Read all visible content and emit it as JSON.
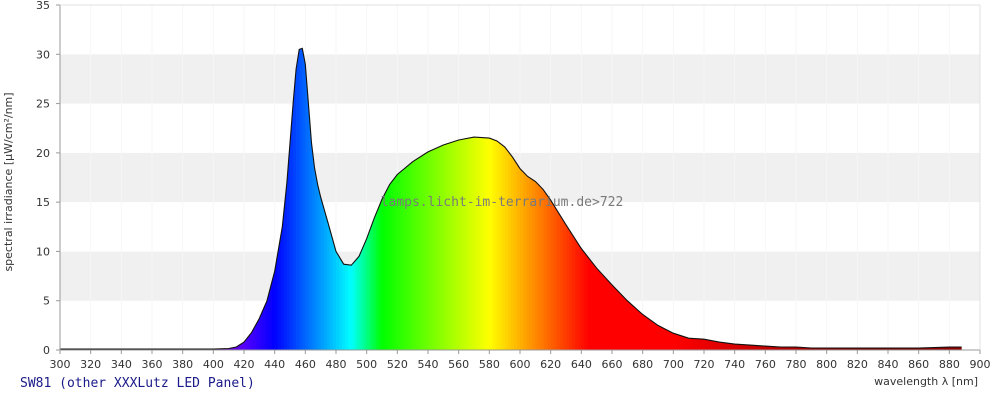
{
  "caption": "SW81 (other XXXLutz LED Panel)",
  "watermark": "lamps.licht-im-terrarium.de>722",
  "chart_data": {
    "type": "area",
    "xlabel": "wavelength λ [nm]",
    "ylabel": "spectral irradiance [µW/cm²/nm]",
    "xlim": [
      300,
      900
    ],
    "ylim": [
      0,
      35
    ],
    "x_ticks": [
      300,
      320,
      340,
      360,
      380,
      400,
      420,
      440,
      460,
      480,
      500,
      520,
      540,
      560,
      580,
      600,
      620,
      640,
      660,
      680,
      700,
      720,
      740,
      760,
      780,
      800,
      820,
      840,
      860,
      880,
      900
    ],
    "y_ticks": [
      0,
      5,
      10,
      15,
      20,
      25,
      30,
      35
    ],
    "grid": "horizontal alternating bands",
    "fill": "visible-spectrum colors under curve",
    "series": [
      {
        "x": [
          300,
          320,
          340,
          360,
          380,
          400,
          410,
          415,
          420,
          425,
          430,
          435,
          440,
          445,
          448,
          450,
          452,
          454,
          456,
          458,
          460,
          462,
          464,
          466,
          468,
          470,
          475,
          480,
          485,
          490,
          495,
          500,
          505,
          510,
          515,
          520,
          530,
          540,
          550,
          560,
          570,
          580,
          585,
          590,
          595,
          600,
          605,
          610,
          615,
          620,
          630,
          640,
          650,
          660,
          670,
          680,
          690,
          700,
          710,
          720,
          730,
          740,
          750,
          760,
          770,
          780,
          790,
          800,
          820,
          840,
          860,
          880,
          888
        ],
        "y": [
          0.1,
          0.1,
          0.1,
          0.1,
          0.1,
          0.1,
          0.15,
          0.3,
          0.8,
          1.8,
          3.2,
          5,
          8,
          12.5,
          17,
          21,
          25,
          28.5,
          30.5,
          30.6,
          29,
          25,
          21,
          18.5,
          16.8,
          15.5,
          12.8,
          10,
          8.7,
          8.6,
          9.5,
          11.3,
          13.4,
          15.3,
          16.8,
          17.8,
          19.1,
          20.1,
          20.8,
          21.3,
          21.6,
          21.5,
          21.2,
          20.6,
          19.6,
          18.4,
          17.6,
          17.1,
          16.3,
          15.2,
          12.7,
          10.3,
          8.3,
          6.6,
          5,
          3.6,
          2.5,
          1.7,
          1.2,
          1.1,
          0.8,
          0.6,
          0.5,
          0.4,
          0.3,
          0.3,
          0.2,
          0.2,
          0.2,
          0.2,
          0.2,
          0.3,
          0.3
        ]
      }
    ]
  }
}
